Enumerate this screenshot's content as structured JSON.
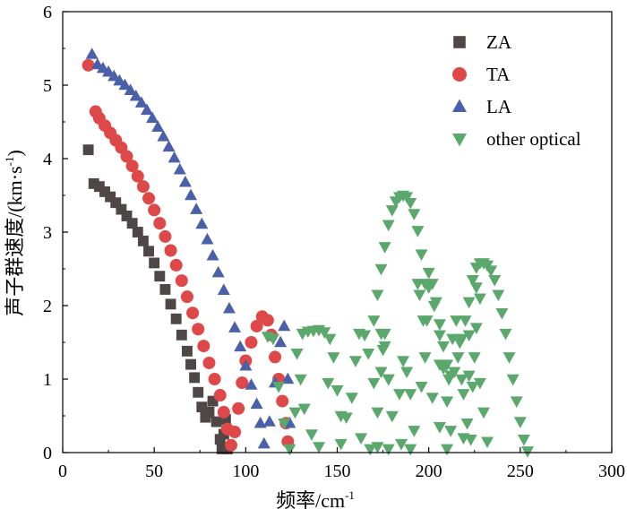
{
  "chart_data": {
    "type": "scatter",
    "xlabel_text": "频率/cm",
    "xlabel_sup": "-1",
    "ylabel_text": "声子群速度/(km·s",
    "ylabel_sup": "-1",
    "ylabel_tail": ")",
    "xlim": [
      0,
      300
    ],
    "ylim": [
      0,
      6
    ],
    "xticks": [
      0,
      50,
      100,
      150,
      200,
      250,
      300
    ],
    "yticks": [
      0,
      1,
      2,
      3,
      4,
      5,
      6
    ],
    "grid": false,
    "legend_position": "top-right",
    "series": [
      {
        "name": "ZA",
        "marker": "square",
        "color": "#4f4745",
        "points": [
          [
            14,
            4.12
          ],
          [
            17,
            3.66
          ],
          [
            20,
            3.62
          ],
          [
            23,
            3.55
          ],
          [
            26,
            3.48
          ],
          [
            29,
            3.4
          ],
          [
            32,
            3.31
          ],
          [
            35,
            3.22
          ],
          [
            38,
            3.12
          ],
          [
            41,
            3.0
          ],
          [
            44,
            2.88
          ],
          [
            47,
            2.74
          ],
          [
            50,
            2.58
          ],
          [
            53,
            2.4
          ],
          [
            56,
            2.22
          ],
          [
            59,
            2.02
          ],
          [
            62,
            1.82
          ],
          [
            65,
            1.6
          ],
          [
            68,
            1.38
          ],
          [
            70,
            1.2
          ],
          [
            72,
            1.02
          ],
          [
            74,
            0.82
          ],
          [
            76,
            0.62
          ],
          [
            78,
            0.48
          ],
          [
            80,
            0.55
          ],
          [
            82,
            0.7
          ],
          [
            84,
            0.42
          ],
          [
            86,
            0.18
          ],
          [
            87,
            0.05
          ],
          [
            88,
            0.25
          ],
          [
            89,
            0.45
          ],
          [
            90,
            0.05
          ]
        ]
      },
      {
        "name": "TA",
        "marker": "circle",
        "color": "#df4848",
        "points": [
          [
            14,
            5.27
          ],
          [
            18,
            4.64
          ],
          [
            20,
            4.55
          ],
          [
            23,
            4.45
          ],
          [
            26,
            4.35
          ],
          [
            29,
            4.25
          ],
          [
            32,
            4.15
          ],
          [
            35,
            4.03
          ],
          [
            38,
            3.9
          ],
          [
            41,
            3.76
          ],
          [
            44,
            3.62
          ],
          [
            47,
            3.46
          ],
          [
            50,
            3.3
          ],
          [
            53,
            3.12
          ],
          [
            56,
            2.94
          ],
          [
            59,
            2.75
          ],
          [
            62,
            2.55
          ],
          [
            65,
            2.34
          ],
          [
            68,
            2.12
          ],
          [
            71,
            1.9
          ],
          [
            74,
            1.68
          ],
          [
            77,
            1.45
          ],
          [
            80,
            1.22
          ],
          [
            83,
            1.0
          ],
          [
            86,
            0.78
          ],
          [
            88,
            0.55
          ],
          [
            90,
            0.32
          ],
          [
            92,
            0.1
          ],
          [
            94,
            0.28
          ],
          [
            96,
            0.6
          ],
          [
            98,
            0.95
          ],
          [
            100,
            1.25
          ],
          [
            103,
            1.5
          ],
          [
            106,
            1.72
          ],
          [
            109,
            1.85
          ],
          [
            112,
            1.8
          ],
          [
            114,
            1.6
          ],
          [
            116,
            1.3
          ],
          [
            118,
            1.0
          ],
          [
            120,
            0.7
          ],
          [
            122,
            0.4
          ],
          [
            123,
            0.15
          ]
        ]
      },
      {
        "name": "LA",
        "marker": "triangle-up",
        "color": "#4a60a8",
        "points": [
          [
            16,
            5.42
          ],
          [
            19,
            5.28
          ],
          [
            22,
            5.23
          ],
          [
            25,
            5.18
          ],
          [
            28,
            5.12
          ],
          [
            31,
            5.06
          ],
          [
            34,
            5.0
          ],
          [
            37,
            4.93
          ],
          [
            40,
            4.85
          ],
          [
            43,
            4.76
          ],
          [
            46,
            4.66
          ],
          [
            49,
            4.55
          ],
          [
            52,
            4.43
          ],
          [
            55,
            4.3
          ],
          [
            58,
            4.16
          ],
          [
            61,
            4.01
          ],
          [
            64,
            3.85
          ],
          [
            67,
            3.68
          ],
          [
            70,
            3.5
          ],
          [
            73,
            3.31
          ],
          [
            76,
            3.11
          ],
          [
            79,
            2.9
          ],
          [
            82,
            2.68
          ],
          [
            85,
            2.45
          ],
          [
            88,
            2.21
          ],
          [
            91,
            1.96
          ],
          [
            94,
            1.7
          ],
          [
            97,
            1.44
          ],
          [
            100,
            1.18
          ],
          [
            103,
            0.92
          ],
          [
            106,
            0.66
          ],
          [
            108,
            0.4
          ],
          [
            110,
            0.12
          ],
          [
            113,
            0.42
          ],
          [
            116,
            0.95
          ],
          [
            119,
            1.5
          ],
          [
            121,
            1.72
          ],
          [
            123,
            1.0
          ],
          [
            124,
            0.4
          ]
        ]
      },
      {
        "name": "other optical",
        "marker": "triangle-down",
        "color": "#5ba86c",
        "points": [
          [
            112,
            1.58
          ],
          [
            115,
            1.55
          ],
          [
            118,
            0.9
          ],
          [
            121,
            0.4
          ],
          [
            124,
            0.05
          ],
          [
            127,
            0.55
          ],
          [
            128,
            1.35
          ],
          [
            131,
            1.62
          ],
          [
            134,
            1.65
          ],
          [
            137,
            1.66
          ],
          [
            140,
            1.67
          ],
          [
            143,
            1.64
          ],
          [
            146,
            1.55
          ],
          [
            148,
            1.3
          ],
          [
            150,
            0.85
          ],
          [
            152,
            0.5
          ],
          [
            155,
            0.48
          ],
          [
            158,
            0.75
          ],
          [
            160,
            1.25
          ],
          [
            162,
            1.62
          ],
          [
            165,
            1.6
          ],
          [
            167,
            1.35
          ],
          [
            170,
            0.95
          ],
          [
            172,
            0.55
          ],
          [
            168,
            0.05
          ],
          [
            163,
            0.2
          ],
          [
            152,
            0.12
          ],
          [
            140,
            0.08
          ],
          [
            136,
            0.25
          ],
          [
            132,
            0.6
          ],
          [
            130,
            1.0
          ],
          [
            145,
            0.95
          ],
          [
            174,
            1.1
          ],
          [
            176,
            1.62
          ],
          [
            175,
            1.4
          ],
          [
            178,
            1.0
          ],
          [
            180,
            0.5
          ],
          [
            172,
            0.08
          ],
          [
            178,
            0.05
          ],
          [
            184,
            0.8
          ],
          [
            186,
            1.25
          ],
          [
            188,
            1.1
          ],
          [
            190,
            0.8
          ],
          [
            185,
            0.12
          ],
          [
            192,
            0.3
          ],
          [
            190,
            0.05
          ],
          [
            196,
            0.9
          ],
          [
            198,
            1.3
          ],
          [
            197,
            1.8
          ],
          [
            195,
            2.15
          ],
          [
            194,
            2.3
          ],
          [
            200,
            2.25
          ],
          [
            203,
            2.0
          ],
          [
            206,
            1.6
          ],
          [
            208,
            1.15
          ],
          [
            210,
            0.7
          ],
          [
            212,
            0.3
          ],
          [
            210,
            0.05
          ],
          [
            206,
            0.35
          ],
          [
            202,
            0.75
          ],
          [
            199,
            1.8
          ],
          [
            206,
            1.2
          ],
          [
            217,
            1.5
          ],
          [
            219,
            0.8
          ],
          [
            221,
            0.4
          ],
          [
            223,
            0.18
          ],
          [
            222,
            1.05
          ],
          [
            225,
            1.3
          ],
          [
            228,
            0.95
          ],
          [
            230,
            0.55
          ],
          [
            232,
            0.15
          ],
          [
            170,
            1.8
          ],
          [
            172,
            2.15
          ],
          [
            174,
            2.5
          ],
          [
            176,
            2.8
          ],
          [
            178,
            3.1
          ],
          [
            180,
            3.3
          ],
          [
            182,
            3.42
          ],
          [
            184,
            3.48
          ],
          [
            186,
            3.5
          ],
          [
            188,
            3.48
          ],
          [
            190,
            3.4
          ],
          [
            192,
            3.25
          ],
          [
            194,
            3.02
          ],
          [
            196,
            2.7
          ],
          [
            198,
            2.3
          ],
          [
            174,
            1.62
          ],
          [
            176,
            1.45
          ],
          [
            178,
            1.0
          ],
          [
            200,
            2.45
          ],
          [
            202,
            2.3
          ],
          [
            204,
            2.05
          ],
          [
            206,
            1.75
          ],
          [
            208,
            1.45
          ],
          [
            210,
            1.2
          ],
          [
            212,
            1.05
          ],
          [
            214,
            1.1
          ],
          [
            216,
            1.3
          ],
          [
            218,
            1.55
          ],
          [
            220,
            1.8
          ],
          [
            222,
            2.05
          ],
          [
            224,
            2.35
          ],
          [
            226,
            2.52
          ],
          [
            228,
            2.58
          ],
          [
            230,
            2.58
          ],
          [
            232,
            2.55
          ],
          [
            234,
            2.48
          ],
          [
            236,
            2.35
          ],
          [
            238,
            2.15
          ],
          [
            240,
            1.9
          ],
          [
            242,
            1.62
          ],
          [
            244,
            1.3
          ],
          [
            246,
            1.0
          ],
          [
            248,
            0.7
          ],
          [
            250,
            0.42
          ],
          [
            252,
            0.18
          ],
          [
            254,
            0.02
          ],
          [
            215,
            1.8
          ],
          [
            213,
            1.55
          ],
          [
            211,
            1.0
          ],
          [
            219,
            0.2
          ],
          [
            224,
            0.9
          ],
          [
            226,
            1.7
          ],
          [
            228,
            2.1
          ],
          [
            226,
            2.25
          ],
          [
            222,
            1.6
          ],
          [
            218,
            1.0
          ]
        ]
      }
    ]
  }
}
